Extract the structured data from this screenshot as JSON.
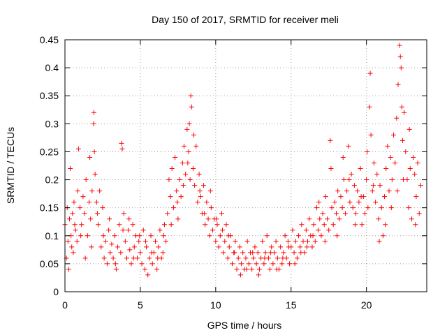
{
  "chart_data": {
    "type": "scatter",
    "title": "Day 150 of 2017, SRMTID for receiver meli",
    "xlabel": "GPS time / hours",
    "ylabel": "SRMTID / TECUs",
    "xlim": [
      0,
      24
    ],
    "ylim": [
      0,
      0.45
    ],
    "x_ticks": [
      0,
      5,
      10,
      15,
      20
    ],
    "x_tick_labels": [
      "0",
      "5",
      "10",
      "15",
      "20"
    ],
    "y_ticks": [
      0,
      0.05,
      0.1,
      0.15,
      0.2,
      0.25,
      0.3,
      0.35,
      0.4,
      0.45
    ],
    "y_tick_labels": [
      "0",
      "0.05",
      "0.1",
      "0.15",
      "0.2",
      "0.25",
      "0.3",
      "0.35",
      "0.4",
      "0.45"
    ],
    "grid": true,
    "marker": "plus",
    "color": "#ff0000",
    "series": [
      {
        "name": "SRMTID",
        "points": [
          [
            0.0,
            0.12
          ],
          [
            0.1,
            0.06
          ],
          [
            0.15,
            0.15
          ],
          [
            0.2,
            0.09
          ],
          [
            0.3,
            0.13
          ],
          [
            0.35,
            0.22
          ],
          [
            0.4,
            0.1
          ],
          [
            0.5,
            0.14
          ],
          [
            0.55,
            0.07
          ],
          [
            0.6,
            0.16
          ],
          [
            0.7,
            0.11
          ],
          [
            0.8,
            0.09
          ],
          [
            0.85,
            0.18
          ],
          [
            0.9,
            0.255
          ],
          [
            1.0,
            0.15
          ],
          [
            1.1,
            0.12
          ],
          [
            1.2,
            0.17
          ],
          [
            1.3,
            0.14
          ],
          [
            1.4,
            0.2
          ],
          [
            1.5,
            0.1
          ],
          [
            1.6,
            0.16
          ],
          [
            1.65,
            0.24
          ],
          [
            1.7,
            0.13
          ],
          [
            1.8,
            0.18
          ],
          [
            1.9,
            0.3
          ],
          [
            1.92,
            0.32
          ],
          [
            1.95,
            0.25
          ],
          [
            2.0,
            0.21
          ],
          [
            2.1,
            0.16
          ],
          [
            2.2,
            0.12
          ],
          [
            2.3,
            0.18
          ],
          [
            2.4,
            0.08
          ],
          [
            2.5,
            0.15
          ],
          [
            2.6,
            0.06
          ],
          [
            2.7,
            0.09
          ],
          [
            2.8,
            0.05
          ],
          [
            2.9,
            0.11
          ],
          [
            3.0,
            0.07
          ],
          [
            3.1,
            0.085
          ],
          [
            3.2,
            0.06
          ],
          [
            3.3,
            0.1
          ],
          [
            3.4,
            0.04
          ],
          [
            3.5,
            0.08
          ],
          [
            3.6,
            0.12
          ],
          [
            3.7,
            0.07
          ],
          [
            3.75,
            0.265
          ],
          [
            3.8,
            0.255
          ],
          [
            3.9,
            0.14
          ],
          [
            4.0,
            0.09
          ],
          [
            4.1,
            0.06
          ],
          [
            4.2,
            0.11
          ],
          [
            4.3,
            0.075
          ],
          [
            4.4,
            0.05
          ],
          [
            4.5,
            0.12
          ],
          [
            4.6,
            0.08
          ],
          [
            4.7,
            0.1
          ],
          [
            4.8,
            0.06
          ],
          [
            4.9,
            0.09
          ],
          [
            5.0,
            0.07
          ],
          [
            5.1,
            0.05
          ],
          [
            5.2,
            0.11
          ],
          [
            5.3,
            0.04
          ],
          [
            5.4,
            0.08
          ],
          [
            5.5,
            0.03
          ],
          [
            5.6,
            0.06
          ],
          [
            5.7,
            0.1
          ],
          [
            5.8,
            0.05
          ],
          [
            5.9,
            0.07
          ],
          [
            6.0,
            0.09
          ],
          [
            6.1,
            0.04
          ],
          [
            6.2,
            0.08
          ],
          [
            6.3,
            0.11
          ],
          [
            6.4,
            0.06
          ],
          [
            6.5,
            0.07
          ],
          [
            6.6,
            0.12
          ],
          [
            6.7,
            0.09
          ],
          [
            6.8,
            0.14
          ],
          [
            6.9,
            0.2
          ],
          [
            7.0,
            0.17
          ],
          [
            7.1,
            0.22
          ],
          [
            7.2,
            0.15
          ],
          [
            7.3,
            0.24
          ],
          [
            7.4,
            0.18
          ],
          [
            7.5,
            0.13
          ],
          [
            7.6,
            0.2
          ],
          [
            7.7,
            0.17
          ],
          [
            7.8,
            0.23
          ],
          [
            7.9,
            0.26
          ],
          [
            8.0,
            0.21
          ],
          [
            8.1,
            0.29
          ],
          [
            8.2,
            0.25
          ],
          [
            8.25,
            0.3
          ],
          [
            8.3,
            0.2
          ],
          [
            8.35,
            0.35
          ],
          [
            8.4,
            0.33
          ],
          [
            8.5,
            0.22
          ],
          [
            8.6,
            0.19
          ],
          [
            8.7,
            0.26
          ],
          [
            8.8,
            0.16
          ],
          [
            8.9,
            0.21
          ],
          [
            9.0,
            0.17
          ],
          [
            9.1,
            0.14
          ],
          [
            9.2,
            0.19
          ],
          [
            9.3,
            0.12
          ],
          [
            9.4,
            0.16
          ],
          [
            9.5,
            0.13
          ],
          [
            9.6,
            0.1
          ],
          [
            9.7,
            0.15
          ],
          [
            9.8,
            0.11
          ],
          [
            9.9,
            0.13
          ],
          [
            10.0,
            0.09
          ],
          [
            10.1,
            0.12
          ],
          [
            10.2,
            0.08
          ],
          [
            10.3,
            0.1
          ],
          [
            10.4,
            0.14
          ],
          [
            10.5,
            0.07
          ],
          [
            10.6,
            0.09
          ],
          [
            10.7,
            0.12
          ],
          [
            10.8,
            0.06
          ],
          [
            10.9,
            0.08
          ],
          [
            11.0,
            0.1
          ],
          [
            11.1,
            0.05
          ],
          [
            11.2,
            0.07
          ],
          [
            11.3,
            0.09
          ],
          [
            11.4,
            0.04
          ],
          [
            11.5,
            0.06
          ],
          [
            11.6,
            0.08
          ],
          [
            11.7,
            0.05
          ],
          [
            11.8,
            0.07
          ],
          [
            11.9,
            0.04
          ],
          [
            12.0,
            0.06
          ],
          [
            12.1,
            0.09
          ],
          [
            12.2,
            0.05
          ],
          [
            12.3,
            0.07
          ],
          [
            12.4,
            0.04
          ],
          [
            12.5,
            0.06
          ],
          [
            12.6,
            0.08
          ],
          [
            12.7,
            0.05
          ],
          [
            12.8,
            0.07
          ],
          [
            12.9,
            0.04
          ],
          [
            13.0,
            0.06
          ],
          [
            13.1,
            0.09
          ],
          [
            13.2,
            0.05
          ],
          [
            13.3,
            0.07
          ],
          [
            13.4,
            0.1
          ],
          [
            13.5,
            0.06
          ],
          [
            13.6,
            0.04
          ],
          [
            13.7,
            0.08
          ],
          [
            13.8,
            0.05
          ],
          [
            13.9,
            0.07
          ],
          [
            14.0,
            0.09
          ],
          [
            14.1,
            0.06
          ],
          [
            14.2,
            0.04
          ],
          [
            14.3,
            0.08
          ],
          [
            14.4,
            0.05
          ],
          [
            14.5,
            0.07
          ],
          [
            14.6,
            0.1
          ],
          [
            14.7,
            0.06
          ],
          [
            14.8,
            0.09
          ],
          [
            14.9,
            0.05
          ],
          [
            15.0,
            0.08
          ],
          [
            15.1,
            0.11
          ],
          [
            15.2,
            0.07
          ],
          [
            15.3,
            0.09
          ],
          [
            15.4,
            0.06
          ],
          [
            15.5,
            0.1
          ],
          [
            15.6,
            0.08
          ],
          [
            15.7,
            0.12
          ],
          [
            15.8,
            0.09
          ],
          [
            15.9,
            0.07
          ],
          [
            16.0,
            0.11
          ],
          [
            16.1,
            0.09
          ],
          [
            16.2,
            0.13
          ],
          [
            16.3,
            0.1
          ],
          [
            16.4,
            0.08
          ],
          [
            16.5,
            0.12
          ],
          [
            16.6,
            0.09
          ],
          [
            16.7,
            0.15
          ],
          [
            16.8,
            0.11
          ],
          [
            16.9,
            0.13
          ],
          [
            17.0,
            0.1
          ],
          [
            17.1,
            0.14
          ],
          [
            17.2,
            0.12
          ],
          [
            17.3,
            0.17
          ],
          [
            17.4,
            0.13
          ],
          [
            17.5,
            0.11
          ],
          [
            17.6,
            0.27
          ],
          [
            17.7,
            0.15
          ],
          [
            17.8,
            0.12
          ],
          [
            17.9,
            0.16
          ],
          [
            18.0,
            0.14
          ],
          [
            18.1,
            0.18
          ],
          [
            18.2,
            0.13
          ],
          [
            18.3,
            0.17
          ],
          [
            18.4,
            0.15
          ],
          [
            18.5,
            0.2
          ],
          [
            18.6,
            0.14
          ],
          [
            18.7,
            0.18
          ],
          [
            18.8,
            0.26
          ],
          [
            18.9,
            0.16
          ],
          [
            19.0,
            0.21
          ],
          [
            19.1,
            0.15
          ],
          [
            19.2,
            0.19
          ],
          [
            19.3,
            0.14
          ],
          [
            19.4,
            0.18
          ],
          [
            19.5,
            0.16
          ],
          [
            19.6,
            0.22
          ],
          [
            19.7,
            0.12
          ],
          [
            19.8,
            0.17
          ],
          [
            19.9,
            0.14
          ],
          [
            20.0,
            0.2
          ],
          [
            20.1,
            0.15
          ],
          [
            20.2,
            0.33
          ],
          [
            20.25,
            0.39
          ],
          [
            20.3,
            0.28
          ],
          [
            20.4,
            0.18
          ],
          [
            20.5,
            0.23
          ],
          [
            20.6,
            0.16
          ],
          [
            20.7,
            0.21
          ],
          [
            20.8,
            0.13
          ],
          [
            20.9,
            0.19
          ],
          [
            21.0,
            0.15
          ],
          [
            21.1,
            0.1
          ],
          [
            21.2,
            0.17
          ],
          [
            21.3,
            0.22
          ],
          [
            21.4,
            0.26
          ],
          [
            21.5,
            0.18
          ],
          [
            21.6,
            0.24
          ],
          [
            21.7,
            0.2
          ],
          [
            21.8,
            0.28
          ],
          [
            21.9,
            0.23
          ],
          [
            22.0,
            0.31
          ],
          [
            22.1,
            0.37
          ],
          [
            22.2,
            0.44
          ],
          [
            22.25,
            0.42
          ],
          [
            22.3,
            0.4
          ],
          [
            22.35,
            0.33
          ],
          [
            22.4,
            0.27
          ],
          [
            22.5,
            0.32
          ],
          [
            22.6,
            0.25
          ],
          [
            22.7,
            0.2
          ],
          [
            22.8,
            0.15
          ],
          [
            22.9,
            0.22
          ],
          [
            23.0,
            0.13
          ],
          [
            23.1,
            0.24
          ],
          [
            23.2,
            0.21
          ],
          [
            23.3,
            0.17
          ],
          [
            23.4,
            0.23
          ],
          [
            23.5,
            0.14
          ],
          [
            23.6,
            0.19
          ],
          [
            0.25,
            0.04
          ],
          [
            0.45,
            0.08
          ],
          [
            0.65,
            0.12
          ],
          [
            1.05,
            0.1
          ],
          [
            1.35,
            0.06
          ],
          [
            1.75,
            0.08
          ],
          [
            2.15,
            0.14
          ],
          [
            2.55,
            0.1
          ],
          [
            2.95,
            0.13
          ],
          [
            3.35,
            0.05
          ],
          [
            3.85,
            0.11
          ],
          [
            4.25,
            0.13
          ],
          [
            4.55,
            0.06
          ],
          [
            4.95,
            0.1
          ],
          [
            5.35,
            0.09
          ],
          [
            5.75,
            0.07
          ],
          [
            6.15,
            0.06
          ],
          [
            6.55,
            0.1
          ],
          [
            7.05,
            0.12
          ],
          [
            7.45,
            0.16
          ],
          [
            7.85,
            0.19
          ],
          [
            8.15,
            0.23
          ],
          [
            8.55,
            0.28
          ],
          [
            8.95,
            0.18
          ],
          [
            9.25,
            0.14
          ],
          [
            9.65,
            0.18
          ],
          [
            10.05,
            0.13
          ],
          [
            10.45,
            0.11
          ],
          [
            10.85,
            0.1
          ],
          [
            11.25,
            0.07
          ],
          [
            11.65,
            0.03
          ],
          [
            12.05,
            0.04
          ],
          [
            12.45,
            0.07
          ],
          [
            12.85,
            0.03
          ],
          [
            13.25,
            0.06
          ],
          [
            13.65,
            0.07
          ],
          [
            14.05,
            0.04
          ],
          [
            14.45,
            0.06
          ],
          [
            14.85,
            0.08
          ],
          [
            15.25,
            0.05
          ],
          [
            15.65,
            0.07
          ],
          [
            16.05,
            0.08
          ],
          [
            16.45,
            0.1
          ],
          [
            16.85,
            0.16
          ],
          [
            17.25,
            0.09
          ],
          [
            17.65,
            0.22
          ],
          [
            18.05,
            0.1
          ],
          [
            18.45,
            0.24
          ],
          [
            18.85,
            0.2
          ],
          [
            19.25,
            0.12
          ],
          [
            19.65,
            0.17
          ],
          [
            20.05,
            0.25
          ],
          [
            20.45,
            0.19
          ],
          [
            20.85,
            0.09
          ],
          [
            21.25,
            0.12
          ],
          [
            21.65,
            0.15
          ],
          [
            22.05,
            0.18
          ],
          [
            22.45,
            0.2
          ],
          [
            22.85,
            0.29
          ],
          [
            23.25,
            0.12
          ]
        ]
      }
    ]
  }
}
